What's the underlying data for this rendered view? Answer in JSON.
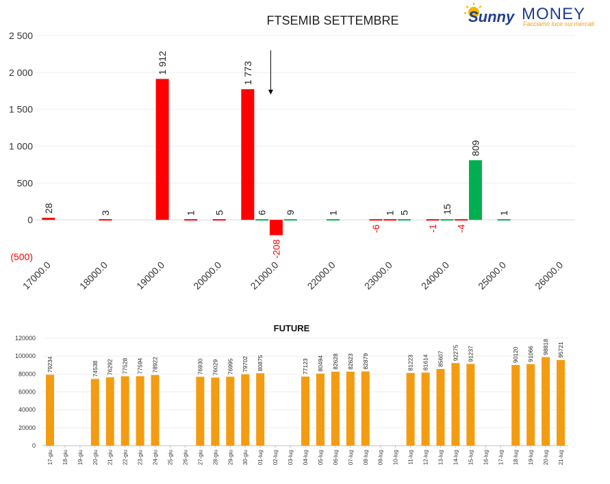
{
  "logo": {
    "word1": "Sunny",
    "word2": "MONEY",
    "tagline": "Facciamo luce sui mercati"
  },
  "colors": {
    "negative": "#ff0000",
    "positive": "#00b050",
    "future": "#f39c12",
    "grid": "#d9d9d9",
    "axis": "#404040"
  },
  "chart_data": [
    {
      "type": "bar",
      "title": "FTSEMIB SETTEMBRE",
      "xlabel": "",
      "ylabel": "",
      "ylim": [
        -500,
        2500
      ],
      "yticks": [
        {
          "value": 2500,
          "label": "2 500"
        },
        {
          "value": 2000,
          "label": "2 000"
        },
        {
          "value": 1500,
          "label": "1 500"
        },
        {
          "value": 1000,
          "label": "1 000"
        },
        {
          "value": 500,
          "label": "500"
        },
        {
          "value": 0,
          "label": "0"
        },
        {
          "value": -500,
          "label": "(500)"
        }
      ],
      "xticks": [
        "17000.0",
        "18000.0",
        "19000.0",
        "20000.0",
        "21000.0",
        "22000.0",
        "23000.0",
        "24000.0",
        "25000.0",
        "26000.0"
      ],
      "bars": [
        {
          "strike": 17000,
          "value": 28,
          "label": "28",
          "color": "red"
        },
        {
          "strike": 18000,
          "value": 3,
          "label": "3",
          "color": "red"
        },
        {
          "strike": 19000,
          "value": 1912,
          "label": "1 912",
          "color": "red"
        },
        {
          "strike": 19500,
          "value": 1,
          "label": "1",
          "color": "red"
        },
        {
          "strike": 20000,
          "value": 5,
          "label": "5",
          "color": "red"
        },
        {
          "strike": 20500,
          "value": 1773,
          "label": "1 773",
          "color": "red"
        },
        {
          "strike": 20750,
          "value": 6,
          "label": "6",
          "color": "green"
        },
        {
          "strike": 21000,
          "value": -208,
          "label": "-208",
          "color": "red"
        },
        {
          "strike": 21250,
          "value": 9,
          "label": "9",
          "color": "green"
        },
        {
          "strike": 22000,
          "value": 1,
          "label": "1",
          "color": "green"
        },
        {
          "strike": 22750,
          "value": -6,
          "label": "-6",
          "color": "red"
        },
        {
          "strike": 23000,
          "value": 1,
          "label": "1",
          "color": "red"
        },
        {
          "strike": 23250,
          "value": 5,
          "label": "5",
          "color": "green"
        },
        {
          "strike": 23750,
          "value": -1,
          "label": "-1",
          "color": "red"
        },
        {
          "strike": 24000,
          "value": 15,
          "label": "15",
          "color": "green"
        },
        {
          "strike": 24250,
          "value": -4,
          "label": "-4",
          "color": "red"
        },
        {
          "strike": 24500,
          "value": 809,
          "label": "809",
          "color": "green"
        },
        {
          "strike": 25000,
          "value": 1,
          "label": "1",
          "color": "green"
        }
      ],
      "annotation": {
        "type": "arrow",
        "strike": 21000,
        "from": 2300,
        "to": 1700
      }
    },
    {
      "type": "bar",
      "title": "FUTURE",
      "xlabel": "",
      "ylabel": "",
      "ylim": [
        0,
        120000
      ],
      "yticks": [
        {
          "value": 120000,
          "label": "120000"
        },
        {
          "value": 100000,
          "label": "100000"
        },
        {
          "value": 80000,
          "label": "80000"
        },
        {
          "value": 60000,
          "label": "60000"
        },
        {
          "value": 40000,
          "label": "40000"
        },
        {
          "value": 20000,
          "label": "20000"
        },
        {
          "value": 0,
          "label": "0"
        }
      ],
      "categories": [
        "17-giu",
        "18-giu",
        "19-giu",
        "20-giu",
        "21-giu",
        "22-giu",
        "23-giu",
        "24-giu",
        "25-giu",
        "26-giu",
        "27-giu",
        "28-giu",
        "29-giu",
        "30-giu",
        "01-lug",
        "02-lug",
        "03-lug",
        "04-lug",
        "05-lug",
        "06-lug",
        "07-lug",
        "08-lug",
        "09-lug",
        "10-lug",
        "11-lug",
        "12-lug",
        "13-lug",
        "14-lug",
        "15-lug",
        "16-lug",
        "17-lug",
        "18-lug",
        "19-lug",
        "20-lug",
        "21-lug"
      ],
      "values": [
        79234,
        null,
        null,
        74538,
        76292,
        77528,
        77594,
        78922,
        null,
        null,
        76930,
        76029,
        76995,
        79702,
        80875,
        null,
        null,
        77123,
        80494,
        82628,
        82623,
        82879,
        null,
        null,
        81223,
        81614,
        85607,
        92275,
        91237,
        null,
        null,
        90120,
        91066,
        98818,
        95721
      ]
    }
  ]
}
